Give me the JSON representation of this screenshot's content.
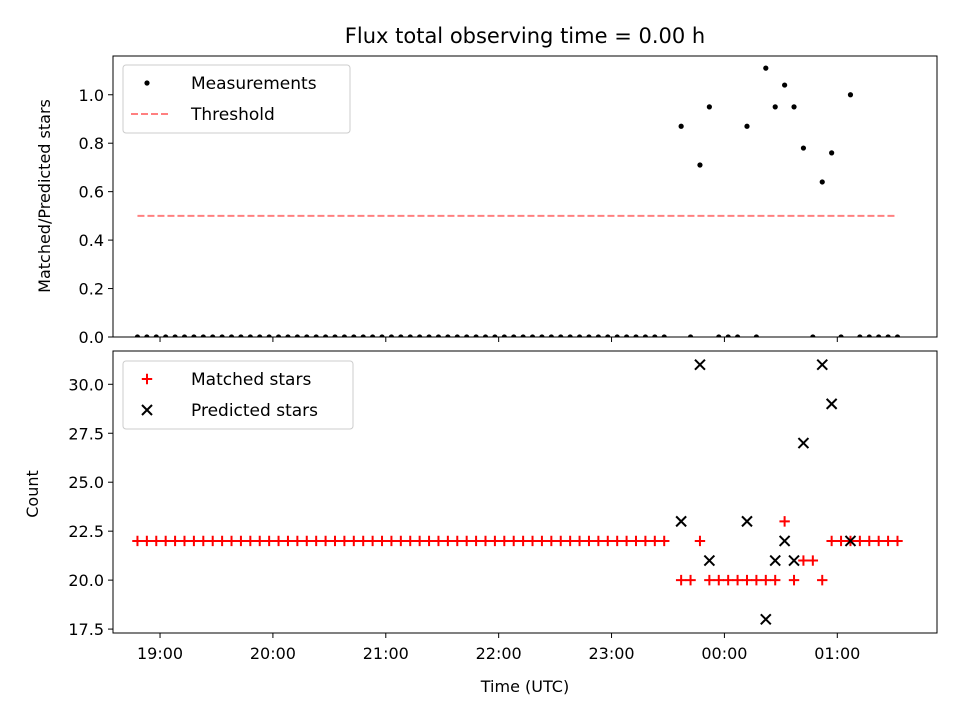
{
  "chart_data": [
    {
      "type": "scatter",
      "title": "Flux total observing time = 0.00 h",
      "xlabel": "",
      "ylabel": "Matched/Predicted stars",
      "xlim": [
        "18:35",
        "01:53"
      ],
      "ylim": [
        0,
        1.16
      ],
      "yticks": [
        "0.0",
        "0.2",
        "0.4",
        "0.6",
        "0.8",
        "1.0"
      ],
      "xticks": [
        "19:00",
        "20:00",
        "21:00",
        "22:00",
        "23:00",
        "00:00",
        "01:00"
      ],
      "legend": "top-left",
      "series": [
        {
          "name": "Measurements",
          "marker": "dot",
          "color": "#000000",
          "points": [
            [
              "18:48",
              0
            ],
            [
              "18:53",
              0
            ],
            [
              "18:58",
              0
            ],
            [
              "19:03",
              0
            ],
            [
              "19:08",
              0
            ],
            [
              "19:13",
              0
            ],
            [
              "19:18",
              0
            ],
            [
              "19:23",
              0
            ],
            [
              "19:28",
              0
            ],
            [
              "19:33",
              0
            ],
            [
              "19:38",
              0
            ],
            [
              "19:43",
              0
            ],
            [
              "19:48",
              0
            ],
            [
              "19:53",
              0
            ],
            [
              "19:58",
              0
            ],
            [
              "20:03",
              0
            ],
            [
              "20:08",
              0
            ],
            [
              "20:13",
              0
            ],
            [
              "20:18",
              0
            ],
            [
              "20:23",
              0
            ],
            [
              "20:28",
              0
            ],
            [
              "20:33",
              0
            ],
            [
              "20:38",
              0
            ],
            [
              "20:43",
              0
            ],
            [
              "20:48",
              0
            ],
            [
              "20:53",
              0
            ],
            [
              "20:58",
              0
            ],
            [
              "21:03",
              0
            ],
            [
              "21:08",
              0
            ],
            [
              "21:13",
              0
            ],
            [
              "21:18",
              0
            ],
            [
              "21:23",
              0
            ],
            [
              "21:28",
              0
            ],
            [
              "21:33",
              0
            ],
            [
              "21:38",
              0
            ],
            [
              "21:43",
              0
            ],
            [
              "21:48",
              0
            ],
            [
              "21:53",
              0
            ],
            [
              "21:58",
              0
            ],
            [
              "22:03",
              0
            ],
            [
              "22:08",
              0
            ],
            [
              "22:13",
              0
            ],
            [
              "22:18",
              0
            ],
            [
              "22:23",
              0
            ],
            [
              "22:28",
              0
            ],
            [
              "22:33",
              0
            ],
            [
              "22:38",
              0
            ],
            [
              "22:43",
              0
            ],
            [
              "22:48",
              0
            ],
            [
              "22:53",
              0
            ],
            [
              "22:58",
              0
            ],
            [
              "23:03",
              0
            ],
            [
              "23:08",
              0
            ],
            [
              "23:13",
              0
            ],
            [
              "23:18",
              0
            ],
            [
              "23:23",
              0
            ],
            [
              "23:28",
              0
            ],
            [
              "23:37",
              0.87
            ],
            [
              "23:42",
              0
            ],
            [
              "23:47",
              0.71
            ],
            [
              "23:52",
              0.95
            ],
            [
              "23:57",
              0
            ],
            [
              "00:02",
              0
            ],
            [
              "00:07",
              0
            ],
            [
              "00:12",
              0.87
            ],
            [
              "00:17",
              0
            ],
            [
              "00:22",
              1.11
            ],
            [
              "00:27",
              0.95
            ],
            [
              "00:32",
              1.04
            ],
            [
              "00:37",
              0.95
            ],
            [
              "00:42",
              0.78
            ],
            [
              "00:47",
              0
            ],
            [
              "00:52",
              0.64
            ],
            [
              "00:57",
              0.76
            ],
            [
              "01:02",
              0
            ],
            [
              "01:07",
              1.0
            ],
            [
              "01:12",
              0
            ],
            [
              "01:17",
              0
            ],
            [
              "01:22",
              0
            ],
            [
              "01:27",
              0
            ],
            [
              "01:32",
              0
            ]
          ]
        },
        {
          "name": "Threshold",
          "marker": "dashed-line",
          "color": "#ff8080",
          "points": [
            [
              "18:48",
              0.5
            ],
            [
              "01:32",
              0.5
            ]
          ]
        }
      ]
    },
    {
      "type": "scatter",
      "title": "",
      "xlabel": "Time (UTC)",
      "ylabel": "Count",
      "xlim": [
        "18:35",
        "01:53"
      ],
      "ylim": [
        17.3,
        31.7
      ],
      "yticks": [
        "17.5",
        "20.0",
        "22.5",
        "25.0",
        "27.5",
        "30.0"
      ],
      "xticks": [
        "19:00",
        "20:00",
        "21:00",
        "22:00",
        "23:00",
        "00:00",
        "01:00"
      ],
      "legend": "top-left",
      "series": [
        {
          "name": "Matched stars",
          "marker": "plus",
          "color": "#ff0000",
          "points": [
            [
              "18:48",
              22
            ],
            [
              "18:53",
              22
            ],
            [
              "18:58",
              22
            ],
            [
              "19:03",
              22
            ],
            [
              "19:08",
              22
            ],
            [
              "19:13",
              22
            ],
            [
              "19:18",
              22
            ],
            [
              "19:23",
              22
            ],
            [
              "19:28",
              22
            ],
            [
              "19:33",
              22
            ],
            [
              "19:38",
              22
            ],
            [
              "19:43",
              22
            ],
            [
              "19:48",
              22
            ],
            [
              "19:53",
              22
            ],
            [
              "19:58",
              22
            ],
            [
              "20:03",
              22
            ],
            [
              "20:08",
              22
            ],
            [
              "20:13",
              22
            ],
            [
              "20:18",
              22
            ],
            [
              "20:23",
              22
            ],
            [
              "20:28",
              22
            ],
            [
              "20:33",
              22
            ],
            [
              "20:38",
              22
            ],
            [
              "20:43",
              22
            ],
            [
              "20:48",
              22
            ],
            [
              "20:53",
              22
            ],
            [
              "20:58",
              22
            ],
            [
              "21:03",
              22
            ],
            [
              "21:08",
              22
            ],
            [
              "21:13",
              22
            ],
            [
              "21:18",
              22
            ],
            [
              "21:23",
              22
            ],
            [
              "21:28",
              22
            ],
            [
              "21:33",
              22
            ],
            [
              "21:38",
              22
            ],
            [
              "21:43",
              22
            ],
            [
              "21:48",
              22
            ],
            [
              "21:53",
              22
            ],
            [
              "21:58",
              22
            ],
            [
              "22:03",
              22
            ],
            [
              "22:08",
              22
            ],
            [
              "22:13",
              22
            ],
            [
              "22:18",
              22
            ],
            [
              "22:23",
              22
            ],
            [
              "22:28",
              22
            ],
            [
              "22:33",
              22
            ],
            [
              "22:38",
              22
            ],
            [
              "22:43",
              22
            ],
            [
              "22:48",
              22
            ],
            [
              "22:53",
              22
            ],
            [
              "22:58",
              22
            ],
            [
              "23:03",
              22
            ],
            [
              "23:08",
              22
            ],
            [
              "23:13",
              22
            ],
            [
              "23:18",
              22
            ],
            [
              "23:23",
              22
            ],
            [
              "23:28",
              22
            ],
            [
              "23:37",
              20
            ],
            [
              "23:42",
              20
            ],
            [
              "23:47",
              22
            ],
            [
              "23:52",
              20
            ],
            [
              "23:57",
              20
            ],
            [
              "00:02",
              20
            ],
            [
              "00:07",
              20
            ],
            [
              "00:12",
              20
            ],
            [
              "00:17",
              20
            ],
            [
              "00:22",
              20
            ],
            [
              "00:27",
              20
            ],
            [
              "00:32",
              23
            ],
            [
              "00:37",
              20
            ],
            [
              "00:42",
              21
            ],
            [
              "00:47",
              21
            ],
            [
              "00:52",
              20
            ],
            [
              "00:57",
              22
            ],
            [
              "01:02",
              22
            ],
            [
              "01:07",
              22
            ],
            [
              "01:12",
              22
            ],
            [
              "01:17",
              22
            ],
            [
              "01:22",
              22
            ],
            [
              "01:27",
              22
            ],
            [
              "01:32",
              22
            ]
          ]
        },
        {
          "name": "Predicted stars",
          "marker": "x",
          "color": "#000000",
          "points": [
            [
              "23:37",
              23
            ],
            [
              "23:47",
              31
            ],
            [
              "23:52",
              21
            ],
            [
              "00:12",
              23
            ],
            [
              "00:22",
              18
            ],
            [
              "00:27",
              21
            ],
            [
              "00:32",
              22
            ],
            [
              "00:37",
              21
            ],
            [
              "00:42",
              27
            ],
            [
              "00:52",
              31
            ],
            [
              "00:57",
              29
            ],
            [
              "01:07",
              22
            ]
          ]
        }
      ]
    }
  ]
}
